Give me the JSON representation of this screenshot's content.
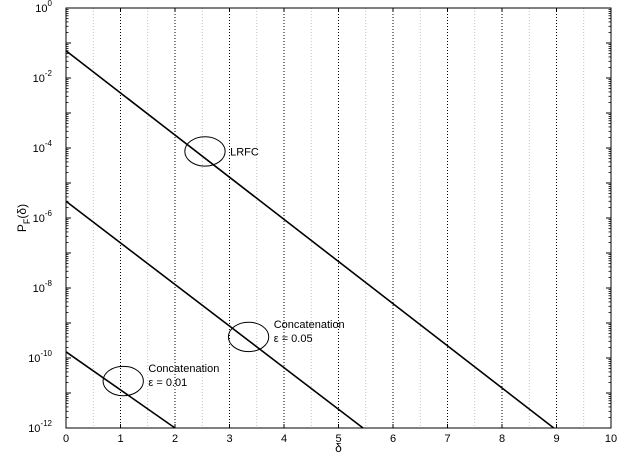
{
  "chart_data": {
    "type": "line",
    "title": "",
    "xlabel": "δ",
    "ylabel_main": "P",
    "ylabel_sub": "F",
    "ylabel_paren": "(δ)",
    "xlim": [
      0,
      10
    ],
    "ylim": [
      1e-12,
      1
    ],
    "yscale": "log",
    "xticks": [
      0,
      1,
      2,
      3,
      4,
      5,
      6,
      7,
      8,
      9,
      10
    ],
    "xtick_labels": [
      "0",
      "1",
      "2",
      "3",
      "4",
      "5",
      "6",
      "7",
      "8",
      "9",
      "10"
    ],
    "yticks": [
      {
        "base": "10",
        "exp": "0"
      },
      {
        "base": "10",
        "exp": "-2"
      },
      {
        "base": "10",
        "exp": "-4"
      },
      {
        "base": "10",
        "exp": "-6"
      },
      {
        "base": "10",
        "exp": "-8"
      },
      {
        "base": "10",
        "exp": "-10"
      },
      {
        "base": "10",
        "exp": "-12"
      }
    ],
    "grid": true,
    "series": [
      {
        "x": [
          0,
          8.95
        ],
        "y": [
          0.06,
          1e-12
        ]
      },
      {
        "x": [
          0,
          5.45
        ],
        "y": [
          3e-06,
          1e-12
        ]
      },
      {
        "x": [
          0,
          2.0
        ],
        "y": [
          1.5e-10,
          1e-12
        ]
      }
    ],
    "annotations": [
      {
        "lines": [
          "LRFC"
        ],
        "x": 2.55,
        "y": 8e-05,
        "rx": 0.37,
        "ry": 0.035
      },
      {
        "lines": [
          "Concatenation",
          "ε = 0.05"
        ],
        "x": 3.35,
        "y": 4e-10,
        "rx": 0.37,
        "ry": 0.035
      },
      {
        "lines": [
          "Concatenation",
          "ε = 0.01"
        ],
        "x": 1.05,
        "y": 2.2e-11,
        "rx": 0.37,
        "ry": 0.035
      }
    ]
  }
}
